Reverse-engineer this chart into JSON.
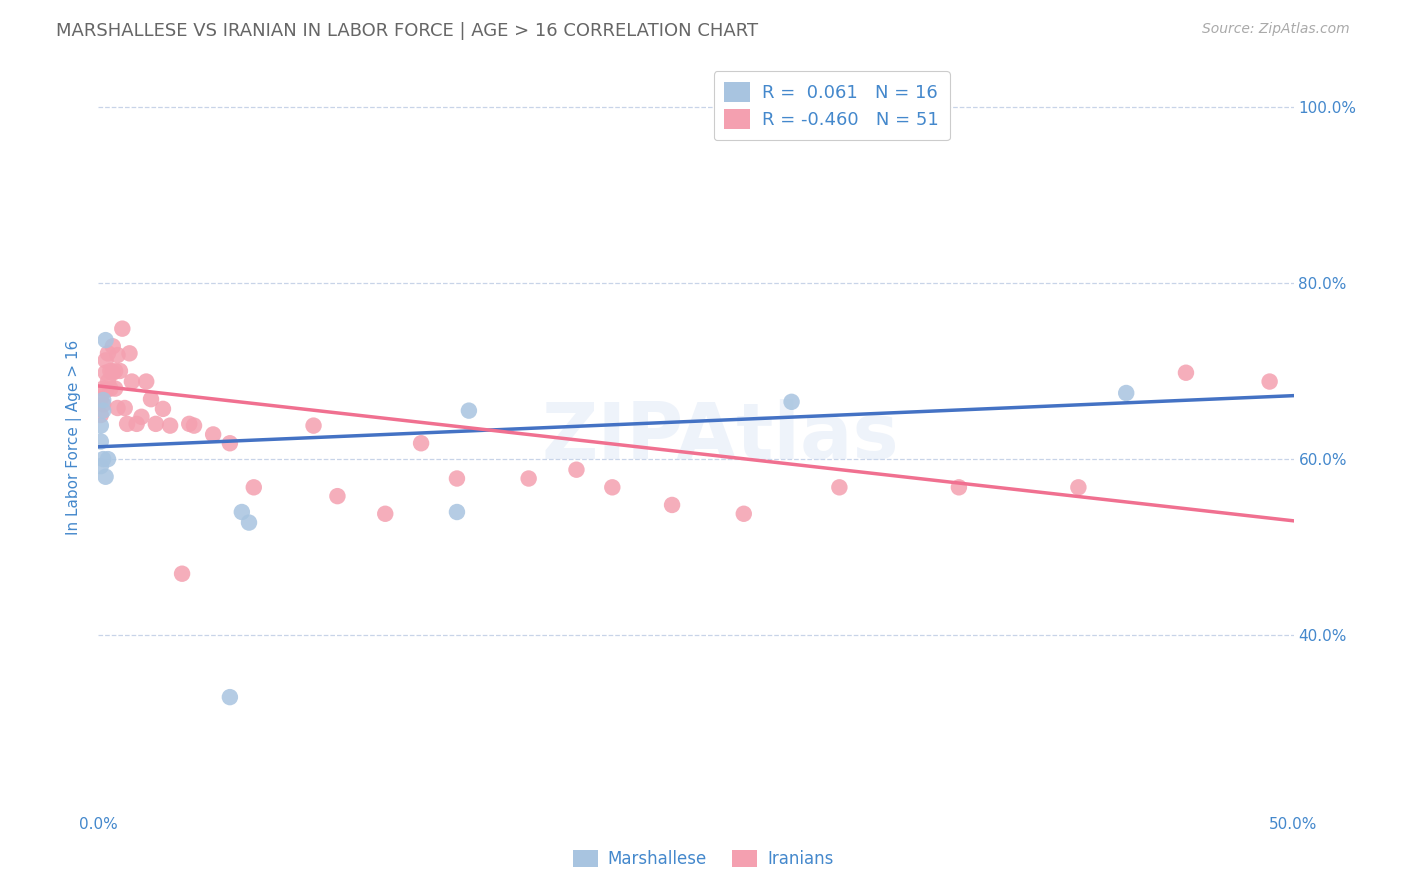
{
  "title": "MARSHALLESE VS IRANIAN IN LABOR FORCE | AGE > 16 CORRELATION CHART",
  "source": "Source: ZipAtlas.com",
  "ylabel": "In Labor Force | Age > 16",
  "xlim": [
    0.0,
    0.5
  ],
  "ylim": [
    0.2,
    1.05
  ],
  "xticks": [
    0.0,
    0.1,
    0.2,
    0.3,
    0.4,
    0.5
  ],
  "yticks": [
    0.4,
    0.6,
    0.8,
    1.0
  ],
  "ytick_labels": [
    "40.0%",
    "60.0%",
    "80.0%",
    "100.0%"
  ],
  "xtick_labels": [
    "0.0%",
    "",
    "",
    "",
    "",
    "50.0%"
  ],
  "marshallese_color": "#a8c4e0",
  "iranian_color": "#f4a0b0",
  "marshallese_line_color": "#4472c4",
  "iranian_line_color": "#f07090",
  "r_marshallese": 0.061,
  "n_marshallese": 16,
  "r_iranian": -0.46,
  "n_iranian": 51,
  "background_color": "#ffffff",
  "grid_color": "#c8d4e8",
  "axis_label_color": "#4488cc",
  "title_color": "#666666",
  "watermark": "ZIPAtlas",
  "marshallese_line_x0": 0.0,
  "marshallese_line_y0": 0.614,
  "marshallese_line_x1": 0.5,
  "marshallese_line_y1": 0.672,
  "iranian_line_x0": 0.0,
  "iranian_line_y0": 0.683,
  "iranian_line_x1": 0.5,
  "iranian_line_y1": 0.53,
  "marshallese_x": [
    0.001,
    0.001,
    0.001,
    0.002,
    0.002,
    0.002,
    0.003,
    0.003,
    0.004,
    0.06,
    0.063,
    0.15,
    0.155,
    0.29,
    0.43,
    0.055
  ],
  "marshallese_y": [
    0.62,
    0.592,
    0.638,
    0.655,
    0.667,
    0.6,
    0.58,
    0.735,
    0.6,
    0.54,
    0.528,
    0.54,
    0.655,
    0.665,
    0.675,
    0.33
  ],
  "iranian_x": [
    0.001,
    0.001,
    0.002,
    0.002,
    0.003,
    0.003,
    0.003,
    0.004,
    0.004,
    0.005,
    0.005,
    0.006,
    0.006,
    0.007,
    0.007,
    0.008,
    0.008,
    0.009,
    0.01,
    0.011,
    0.012,
    0.013,
    0.014,
    0.016,
    0.018,
    0.02,
    0.022,
    0.024,
    0.027,
    0.03,
    0.035,
    0.038,
    0.04,
    0.048,
    0.055,
    0.065,
    0.09,
    0.1,
    0.12,
    0.135,
    0.15,
    0.18,
    0.2,
    0.215,
    0.24,
    0.27,
    0.31,
    0.36,
    0.41,
    0.455,
    0.49
  ],
  "iranian_y": [
    0.668,
    0.65,
    0.662,
    0.68,
    0.678,
    0.698,
    0.712,
    0.688,
    0.72,
    0.68,
    0.7,
    0.698,
    0.728,
    0.68,
    0.7,
    0.658,
    0.718,
    0.7,
    0.748,
    0.658,
    0.64,
    0.72,
    0.688,
    0.64,
    0.648,
    0.688,
    0.668,
    0.64,
    0.657,
    0.638,
    0.47,
    0.64,
    0.638,
    0.628,
    0.618,
    0.568,
    0.638,
    0.558,
    0.538,
    0.618,
    0.578,
    0.578,
    0.588,
    0.568,
    0.548,
    0.538,
    0.568,
    0.568,
    0.568,
    0.698,
    0.688
  ]
}
